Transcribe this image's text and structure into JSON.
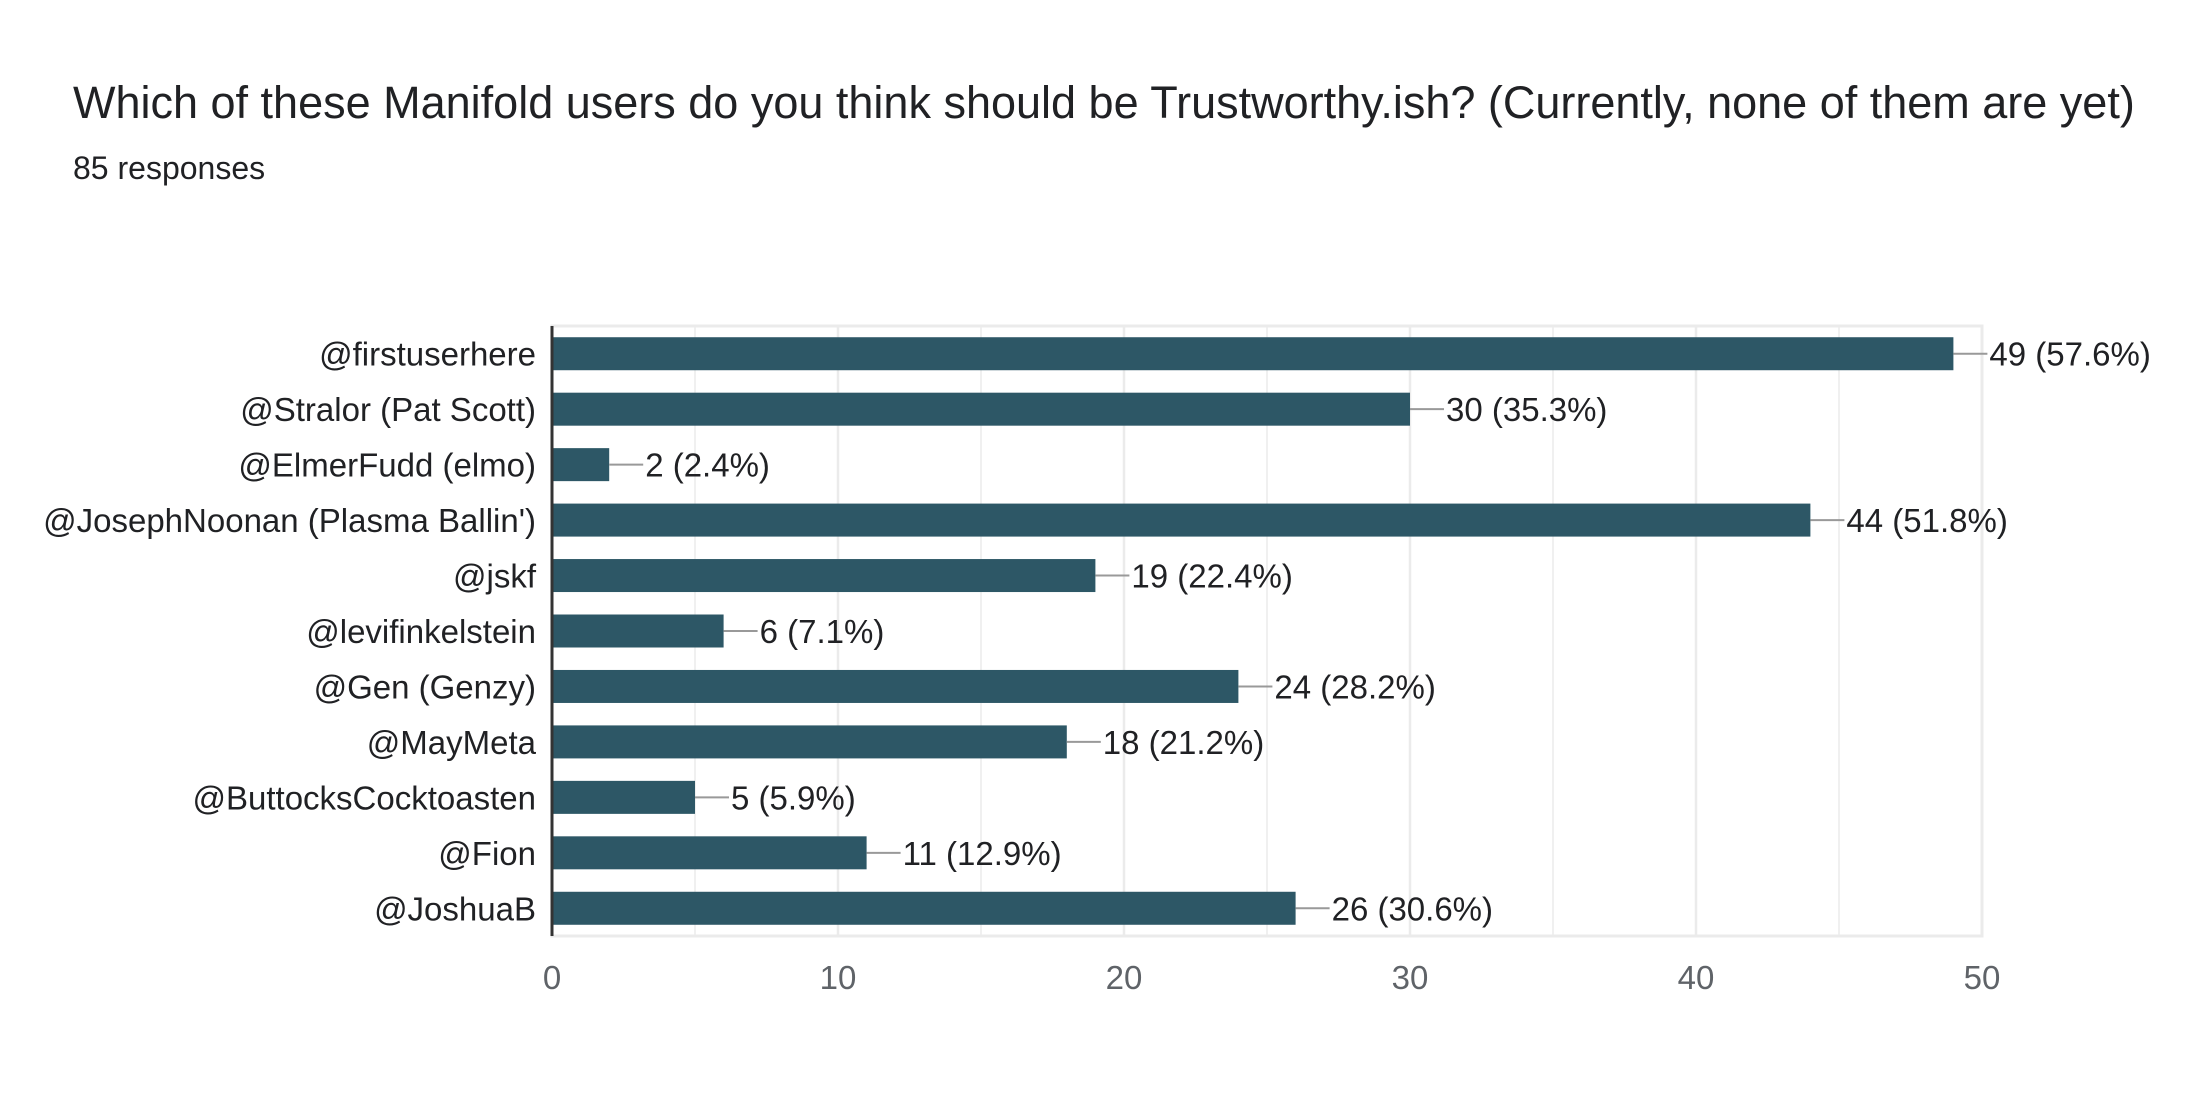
{
  "question": {
    "title": "Which of these Manifold users do you think should be Trustworthy.ish? (Currently, none of them are yet)",
    "response_count": "85 responses"
  },
  "colors": {
    "bar": "#2d5766",
    "grid": "#ebebeb",
    "axis": "#333333",
    "leader_line": "#999999",
    "label_text": "#202124",
    "tick_text": "#5f6368"
  },
  "chart_data": {
    "type": "bar",
    "orientation": "horizontal",
    "categories": [
      "@firstuserhere",
      "@Stralor (Pat Scott)",
      "@ElmerFudd (elmo)",
      "@JosephNoonan (Plasma Ballin')",
      "@jskf",
      "@levifinkelstein",
      "@Gen (Genzy)",
      "@MayMeta",
      "@ButtocksCocktoasten",
      "@Fion",
      "@JoshuaB"
    ],
    "values": [
      49,
      30,
      2,
      44,
      19,
      6,
      24,
      18,
      5,
      11,
      26
    ],
    "data_labels": [
      "49 (57.6%)",
      "30 (35.3%)",
      "2 (2.4%)",
      "44 (51.8%)",
      "19 (22.4%)",
      "6 (7.1%)",
      "24 (28.2%)",
      "18 (21.2%)",
      "5 (5.9%)",
      "11 (12.9%)",
      "26 (30.6%)"
    ],
    "xlim": [
      0,
      50
    ],
    "x_ticks": [
      0,
      10,
      20,
      30,
      40,
      50
    ],
    "x_tick_labels": [
      "0",
      "10",
      "20",
      "30",
      "40",
      "50"
    ],
    "grid": true
  }
}
